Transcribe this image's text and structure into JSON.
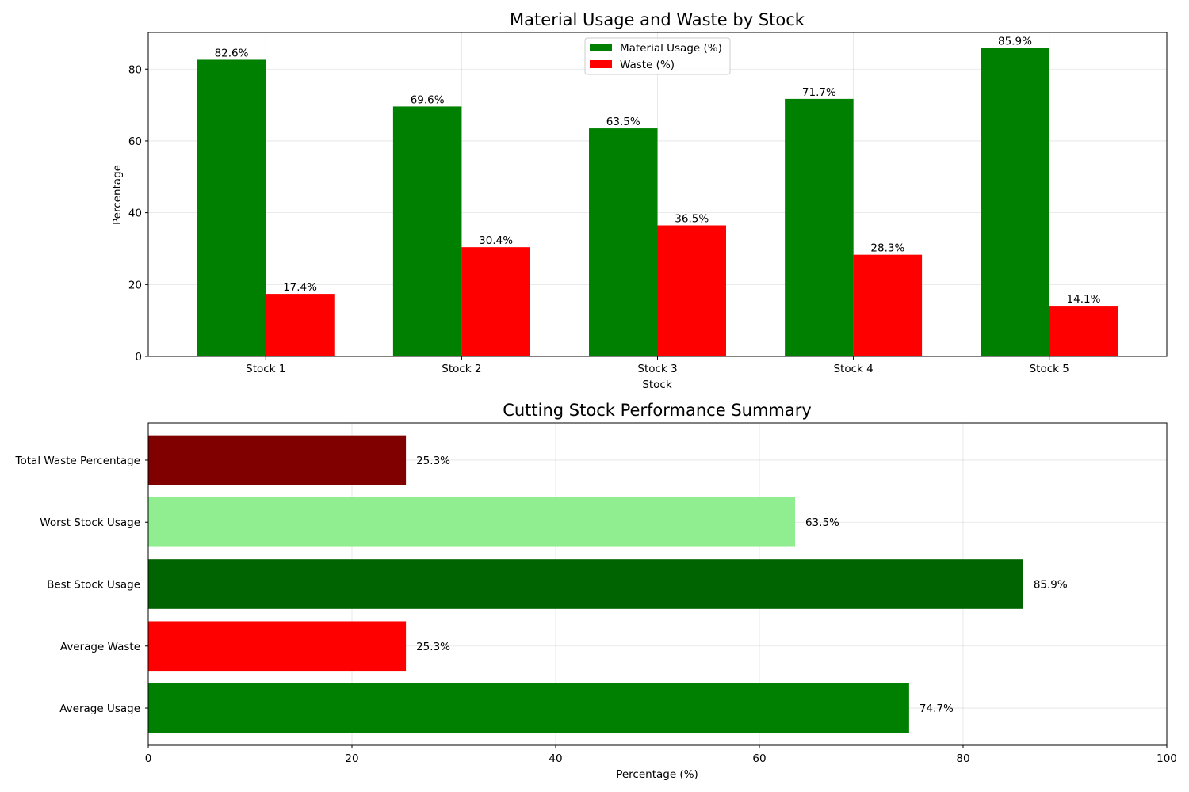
{
  "chart_data": [
    {
      "type": "bar",
      "title": "Material Usage and Waste by Stock",
      "xlabel": "Stock",
      "ylabel": "Percentage",
      "categories": [
        "Stock 1",
        "Stock 2",
        "Stock 3",
        "Stock 4",
        "Stock 5"
      ],
      "series": [
        {
          "name": "Material Usage (%)",
          "color": "#008000",
          "values": [
            82.6,
            69.6,
            63.5,
            71.7,
            85.9
          ],
          "labels": [
            "82.6%",
            "69.6%",
            "63.5%",
            "71.7%",
            "85.9%"
          ]
        },
        {
          "name": "Waste (%)",
          "color": "#ff0000",
          "values": [
            17.4,
            30.4,
            36.5,
            28.3,
            14.1
          ],
          "labels": [
            "17.4%",
            "30.4%",
            "36.5%",
            "28.3%",
            "14.1%"
          ]
        }
      ],
      "ylim": [
        0,
        90.2
      ],
      "yticks": [
        0,
        20,
        40,
        60,
        80
      ],
      "ytick_labels": [
        "0",
        "20",
        "40",
        "60",
        "80"
      ],
      "grid": true,
      "legend": "upper-center"
    },
    {
      "type": "bar",
      "orientation": "horizontal",
      "title": "Cutting Stock Performance Summary",
      "xlabel": "Percentage (%)",
      "ylabel": "",
      "categories": [
        "Average Usage",
        "Average Waste",
        "Best Stock Usage",
        "Worst Stock Usage",
        "Total Waste Percentage"
      ],
      "values": [
        74.7,
        25.3,
        85.9,
        63.5,
        25.3
      ],
      "labels": [
        "74.7%",
        "25.3%",
        "85.9%",
        "63.5%",
        "25.3%"
      ],
      "colors": [
        "#008000",
        "#ff0000",
        "#006400",
        "#90ee90",
        "#800000"
      ],
      "xlim": [
        0,
        100
      ],
      "xticks": [
        0,
        20,
        40,
        60,
        80,
        100
      ],
      "xtick_labels": [
        "0",
        "20",
        "40",
        "60",
        "80",
        "100"
      ],
      "grid": true
    }
  ]
}
